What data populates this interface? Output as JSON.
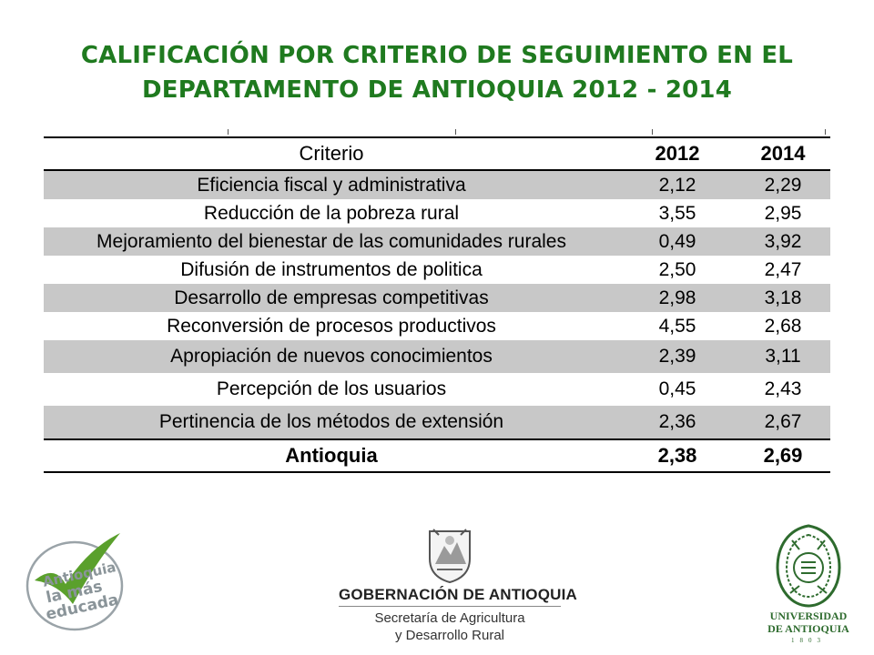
{
  "title": {
    "line1": "CALIFICACIÓN POR CRITERIO DE SEGUIMIENTO EN EL",
    "line2": "DEPARTAMENTO  DE ANTIOQUIA 2012 - 2014"
  },
  "table": {
    "headers": {
      "criterio": "Criterio",
      "y1": "2012",
      "y2": "2014"
    },
    "rows": [
      {
        "criterio": "Eficiencia fiscal y administrativa",
        "y1": "2,12",
        "y2": "2,29"
      },
      {
        "criterio": "Reducción de la pobreza rural",
        "y1": "3,55",
        "y2": "2,95"
      },
      {
        "criterio": "Mejoramiento del bienestar de las comunidades rurales",
        "y1": "0,49",
        "y2": "3,92"
      },
      {
        "criterio": "Difusión de instrumentos de politica",
        "y1": "2,50",
        "y2": "2,47"
      },
      {
        "criterio": "Desarrollo de empresas competitivas",
        "y1": "2,98",
        "y2": "3,18"
      },
      {
        "criterio": "Reconversión de procesos productivos",
        "y1": "4,55",
        "y2": "2,68"
      },
      {
        "criterio": "Apropiación de nuevos conocimientos",
        "y1": "2,39",
        "y2": "3,11"
      },
      {
        "criterio": "Percepción de los usuarios",
        "y1": "0,45",
        "y2": "2,43"
      },
      {
        "criterio": "Pertinencia de los métodos de extensión",
        "y1": "2,36",
        "y2": "2,67"
      }
    ],
    "total": {
      "criterio": "Antioquia",
      "y1": "2,38",
      "y2": "2,69"
    }
  },
  "logos": {
    "left": {
      "line1": "Antioquia",
      "line2": "la más",
      "line3": "educada",
      "icon": "checkmark-icon",
      "color": "#5aa02c"
    },
    "center": {
      "name": "GOBERNACIÓN DE ANTIOQUIA",
      "sub1": "Secretaría de Agricultura",
      "sub2": "y Desarrollo Rural",
      "icon": "coat-of-arms-icon"
    },
    "right": {
      "line1": "UNIVERSIDAD",
      "line2": "DE ANTIOQUIA",
      "year": "1803",
      "icon": "university-seal-icon",
      "color": "#2e6b2e"
    }
  }
}
